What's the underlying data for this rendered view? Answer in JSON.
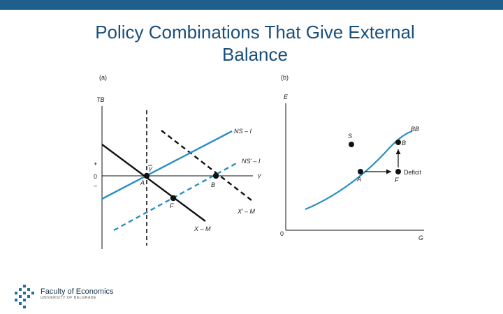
{
  "slide": {
    "title_line1": "Policy Combinations That Give External",
    "title_line2": "Balance"
  },
  "panel_a": {
    "tag": "(a)",
    "y_axis": "TB",
    "x_axis": "Y",
    "plus": "+",
    "zero": "0",
    "minus": "–",
    "y_bar": "Y",
    "curves": {
      "ns_i": "NS – I",
      "ns_i_prime": "NS’ – I",
      "x_m": "X – M",
      "x_m_prime": "X’ – M"
    },
    "points": {
      "A": "A",
      "B": "B",
      "F": "F"
    }
  },
  "panel_b": {
    "tag": "(b)",
    "y_axis": "E",
    "x_axis": "G",
    "origin": "0",
    "curve": "BB",
    "deficit": "Deficit",
    "points": {
      "S": "S",
      "A": "A",
      "B": "B",
      "F": "F"
    }
  },
  "logo": {
    "name": "Faculty of Economics",
    "sub": "UNIVERSITY OF BELGRADE"
  },
  "colors": {
    "bar": "#1f5f8b",
    "title": "#1a4f7a",
    "black_curve": "#111111",
    "blue_curve": "#2a8fc4",
    "logo_dots": "#1f6f9f"
  }
}
